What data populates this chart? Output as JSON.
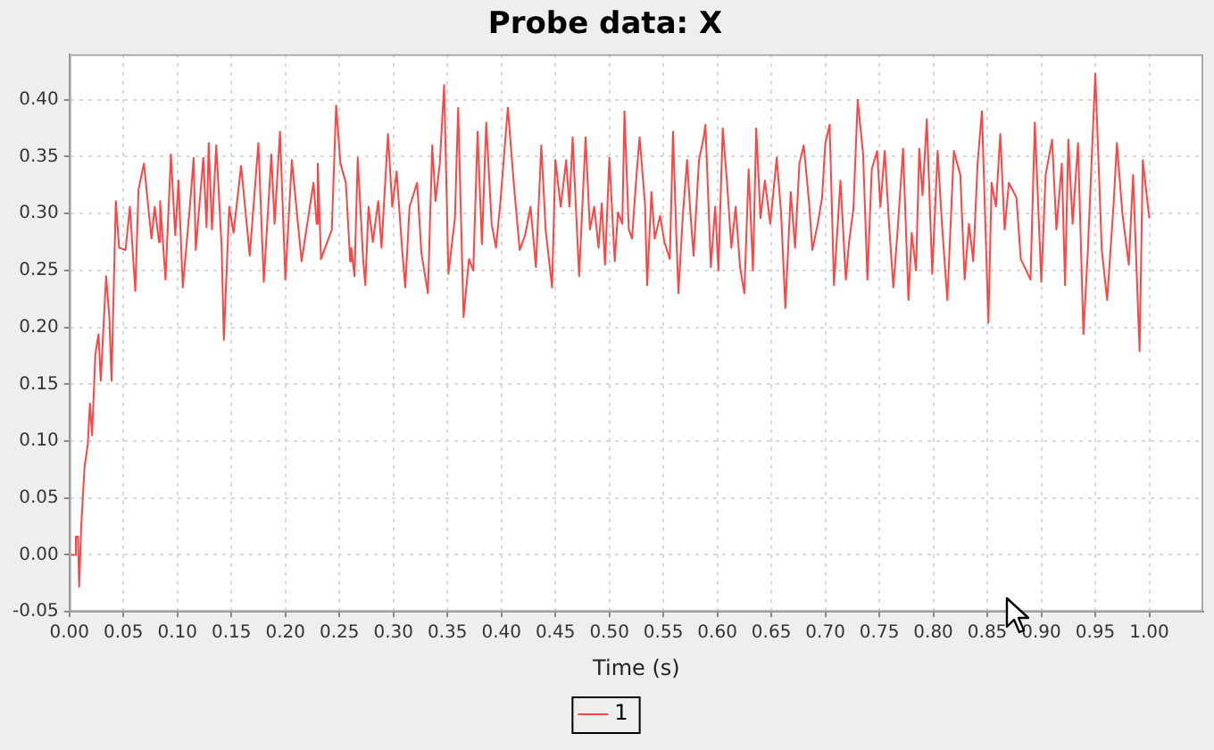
{
  "chart_data": {
    "type": "line",
    "title": "Probe data: X",
    "xlabel": "Time (s)",
    "xlim": [
      0,
      1.05
    ],
    "ylim": [
      -0.05,
      0.44
    ],
    "xticks": [
      {
        "value": 0,
        "label": "0.00"
      },
      {
        "value": 0.05,
        "label": "0.05"
      },
      {
        "value": 0.1,
        "label": "0.10"
      },
      {
        "value": 0.15,
        "label": "0.15"
      },
      {
        "value": 0.2,
        "label": "0.20"
      },
      {
        "value": 0.25,
        "label": "0.25"
      },
      {
        "value": 0.3,
        "label": "0.30"
      },
      {
        "value": 0.35,
        "label": "0.35"
      },
      {
        "value": 0.4,
        "label": "0.40"
      },
      {
        "value": 0.45,
        "label": "0.45"
      },
      {
        "value": 0.5,
        "label": "0.50"
      },
      {
        "value": 0.55,
        "label": "0.55"
      },
      {
        "value": 0.6,
        "label": "0.60"
      },
      {
        "value": 0.65,
        "label": "0.65"
      },
      {
        "value": 0.7,
        "label": "0.70"
      },
      {
        "value": 0.75,
        "label": "0.75"
      },
      {
        "value": 0.8,
        "label": "0.80"
      },
      {
        "value": 0.85,
        "label": "0.85"
      },
      {
        "value": 0.9,
        "label": "0.90"
      },
      {
        "value": 0.95,
        "label": "0.95"
      },
      {
        "value": 1,
        "label": "1.00"
      }
    ],
    "yticks": [
      {
        "value": -0.05,
        "label": "-0.05"
      },
      {
        "value": 0,
        "label": "0.00"
      },
      {
        "value": 0.05,
        "label": "0.05"
      },
      {
        "value": 0.1,
        "label": "0.10"
      },
      {
        "value": 0.15,
        "label": "0.15"
      },
      {
        "value": 0.2,
        "label": "0.20"
      },
      {
        "value": 0.25,
        "label": "0.25"
      },
      {
        "value": 0.3,
        "label": "0.30"
      },
      {
        "value": 0.35,
        "label": "0.35"
      },
      {
        "value": 0.4,
        "label": "0.40"
      }
    ],
    "grid": true,
    "legend": "bottom",
    "marker": "none",
    "line_style": "solid",
    "series": [
      {
        "name": "1",
        "color": "#ff4444",
        "x": [
          0,
          0.006,
          0.006,
          0.008,
          0.009,
          0.011,
          0.014,
          0.017,
          0.019,
          0.021,
          0.024,
          0.027,
          0.029,
          0.034,
          0.037,
          0.039,
          0.043,
          0.046,
          0.052,
          0.056,
          0.061,
          0.064,
          0.069,
          0.076,
          0.079,
          0.083,
          0.084,
          0.089,
          0.094,
          0.098,
          0.101,
          0.105,
          0.112,
          0.115,
          0.117,
          0.124,
          0.127,
          0.129,
          0.132,
          0.136,
          0.141,
          0.143,
          0.148,
          0.152,
          0.159,
          0.167,
          0.175,
          0.18,
          0.187,
          0.19,
          0.195,
          0.2,
          0.206,
          0.215,
          0.226,
          0.229,
          0.23,
          0.233,
          0.243,
          0.247,
          0.251,
          0.256,
          0.26,
          0.261,
          0.264,
          0.267,
          0.272,
          0.274,
          0.277,
          0.281,
          0.286,
          0.289,
          0.295,
          0.299,
          0.303,
          0.308,
          0.311,
          0.315,
          0.322,
          0.326,
          0.332,
          0.336,
          0.339,
          0.343,
          0.347,
          0.351,
          0.357,
          0.36,
          0.365,
          0.37,
          0.374,
          0.378,
          0.382,
          0.386,
          0.391,
          0.395,
          0.399,
          0.406,
          0.412,
          0.417,
          0.422,
          0.427,
          0.432,
          0.437,
          0.441,
          0.447,
          0.45,
          0.455,
          0.46,
          0.463,
          0.466,
          0.472,
          0.478,
          0.482,
          0.486,
          0.49,
          0.493,
          0.496,
          0.5,
          0.505,
          0.508,
          0.512,
          0.514,
          0.518,
          0.521,
          0.525,
          0.528,
          0.533,
          0.535,
          0.539,
          0.542,
          0.547,
          0.551,
          0.556,
          0.559,
          0.562,
          0.564,
          0.568,
          0.572,
          0.575,
          0.578,
          0.583,
          0.587,
          0.589,
          0.594,
          0.598,
          0.601,
          0.605,
          0.609,
          0.613,
          0.617,
          0.621,
          0.625,
          0.629,
          0.633,
          0.636,
          0.64,
          0.644,
          0.649,
          0.655,
          0.659,
          0.663,
          0.668,
          0.672,
          0.676,
          0.68,
          0.685,
          0.688,
          0.693,
          0.697,
          0.7,
          0.704,
          0.708,
          0.714,
          0.719,
          0.722,
          0.726,
          0.73,
          0.735,
          0.739,
          0.743,
          0.748,
          0.751,
          0.755,
          0.759,
          0.763,
          0.767,
          0.772,
          0.777,
          0.78,
          0.784,
          0.787,
          0.79,
          0.794,
          0.799,
          0.804,
          0.808,
          0.813,
          0.819,
          0.825,
          0.829,
          0.833,
          0.837,
          0.841,
          0.845,
          0.851,
          0.854,
          0.858,
          0.862,
          0.866,
          0.87,
          0.877,
          0.881,
          0.89,
          0.894,
          0.9,
          0.904,
          0.91,
          0.914,
          0.919,
          0.922,
          0.925,
          0.929,
          0.934,
          0.939,
          0.943,
          0.95,
          0.956,
          0.961,
          0.967,
          0.97,
          0.975,
          0.981,
          0.985,
          0.991,
          0.994,
          1
        ],
        "values": [
          0,
          0,
          0.016,
          0.016,
          -0.028,
          0.026,
          0.077,
          0.097,
          0.133,
          0.105,
          0.176,
          0.194,
          0.153,
          0.245,
          0.209,
          0.153,
          0.311,
          0.27,
          0.268,
          0.306,
          0.232,
          0.321,
          0.344,
          0.278,
          0.306,
          0.275,
          0.311,
          0.242,
          0.352,
          0.281,
          0.329,
          0.235,
          0.311,
          0.349,
          0.268,
          0.349,
          0.288,
          0.362,
          0.286,
          0.36,
          0.27,
          0.189,
          0.306,
          0.283,
          0.342,
          0.263,
          0.362,
          0.24,
          0.352,
          0.291,
          0.372,
          0.242,
          0.347,
          0.258,
          0.327,
          0.291,
          0.344,
          0.26,
          0.286,
          0.395,
          0.344,
          0.327,
          0.258,
          0.27,
          0.245,
          0.349,
          0.26,
          0.237,
          0.306,
          0.275,
          0.311,
          0.27,
          0.37,
          0.306,
          0.337,
          0.27,
          0.235,
          0.306,
          0.327,
          0.265,
          0.23,
          0.36,
          0.311,
          0.344,
          0.413,
          0.247,
          0.296,
          0.393,
          0.209,
          0.26,
          0.25,
          0.372,
          0.273,
          0.38,
          0.291,
          0.27,
          0.309,
          0.393,
          0.321,
          0.268,
          0.281,
          0.306,
          0.253,
          0.36,
          0.286,
          0.235,
          0.347,
          0.306,
          0.347,
          0.306,
          0.367,
          0.245,
          0.367,
          0.286,
          0.306,
          0.27,
          0.309,
          0.255,
          0.349,
          0.258,
          0.301,
          0.291,
          0.39,
          0.286,
          0.278,
          0.332,
          0.367,
          0.309,
          0.237,
          0.319,
          0.278,
          0.298,
          0.275,
          0.26,
          0.372,
          0.281,
          0.23,
          0.298,
          0.347,
          0.301,
          0.263,
          0.347,
          0.365,
          0.378,
          0.253,
          0.306,
          0.25,
          0.375,
          0.327,
          0.27,
          0.306,
          0.253,
          0.23,
          0.339,
          0.25,
          0.375,
          0.296,
          0.329,
          0.291,
          0.349,
          0.301,
          0.217,
          0.319,
          0.27,
          0.344,
          0.36,
          0.309,
          0.268,
          0.291,
          0.314,
          0.362,
          0.378,
          0.237,
          0.329,
          0.242,
          0.275,
          0.304,
          0.4,
          0.352,
          0.242,
          0.339,
          0.355,
          0.306,
          0.355,
          0.291,
          0.235,
          0.286,
          0.357,
          0.224,
          0.283,
          0.25,
          0.357,
          0.316,
          0.383,
          0.247,
          0.355,
          0.291,
          0.224,
          0.355,
          0.334,
          0.242,
          0.291,
          0.258,
          0.344,
          0.39,
          0.204,
          0.327,
          0.306,
          0.37,
          0.286,
          0.327,
          0.314,
          0.26,
          0.242,
          0.38,
          0.24,
          0.334,
          0.365,
          0.286,
          0.344,
          0.237,
          0.365,
          0.291,
          0.362,
          0.194,
          0.265,
          0.423,
          0.268,
          0.224,
          0.309,
          0.362,
          0.301,
          0.255,
          0.334,
          0.179,
          0.347,
          0.296
        ]
      }
    ]
  }
}
